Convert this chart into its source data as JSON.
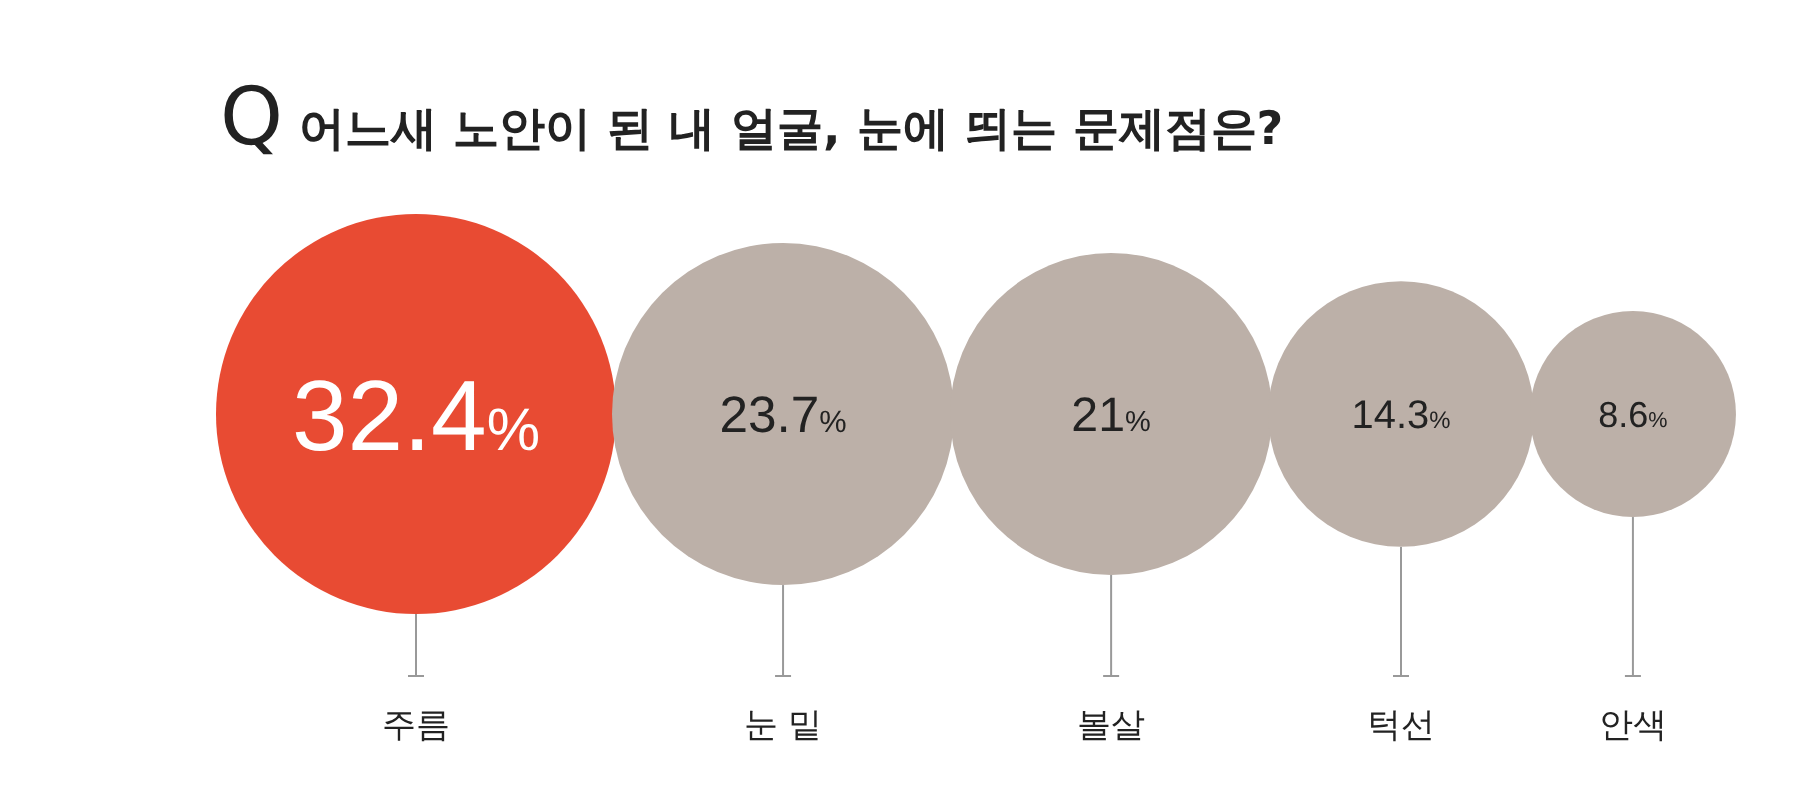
{
  "chart_data": {
    "type": "other",
    "title": "Q 어느새 노안이 된 내 얼굴, 눈에 띄는 문제점은?",
    "categories": [
      "주름",
      "눈 밑",
      "볼살",
      "턱선",
      "안색"
    ],
    "values": [
      32.4,
      23.7,
      21,
      14.3,
      8.6
    ],
    "value_labels": [
      "32.4%",
      "23.7%",
      "21%",
      "14.3%",
      "8.6%"
    ],
    "colors": [
      "#e84b33",
      "#bcb0a8",
      "#bcb0a8",
      "#bcb0a8",
      "#bcb0a8"
    ]
  }
}
